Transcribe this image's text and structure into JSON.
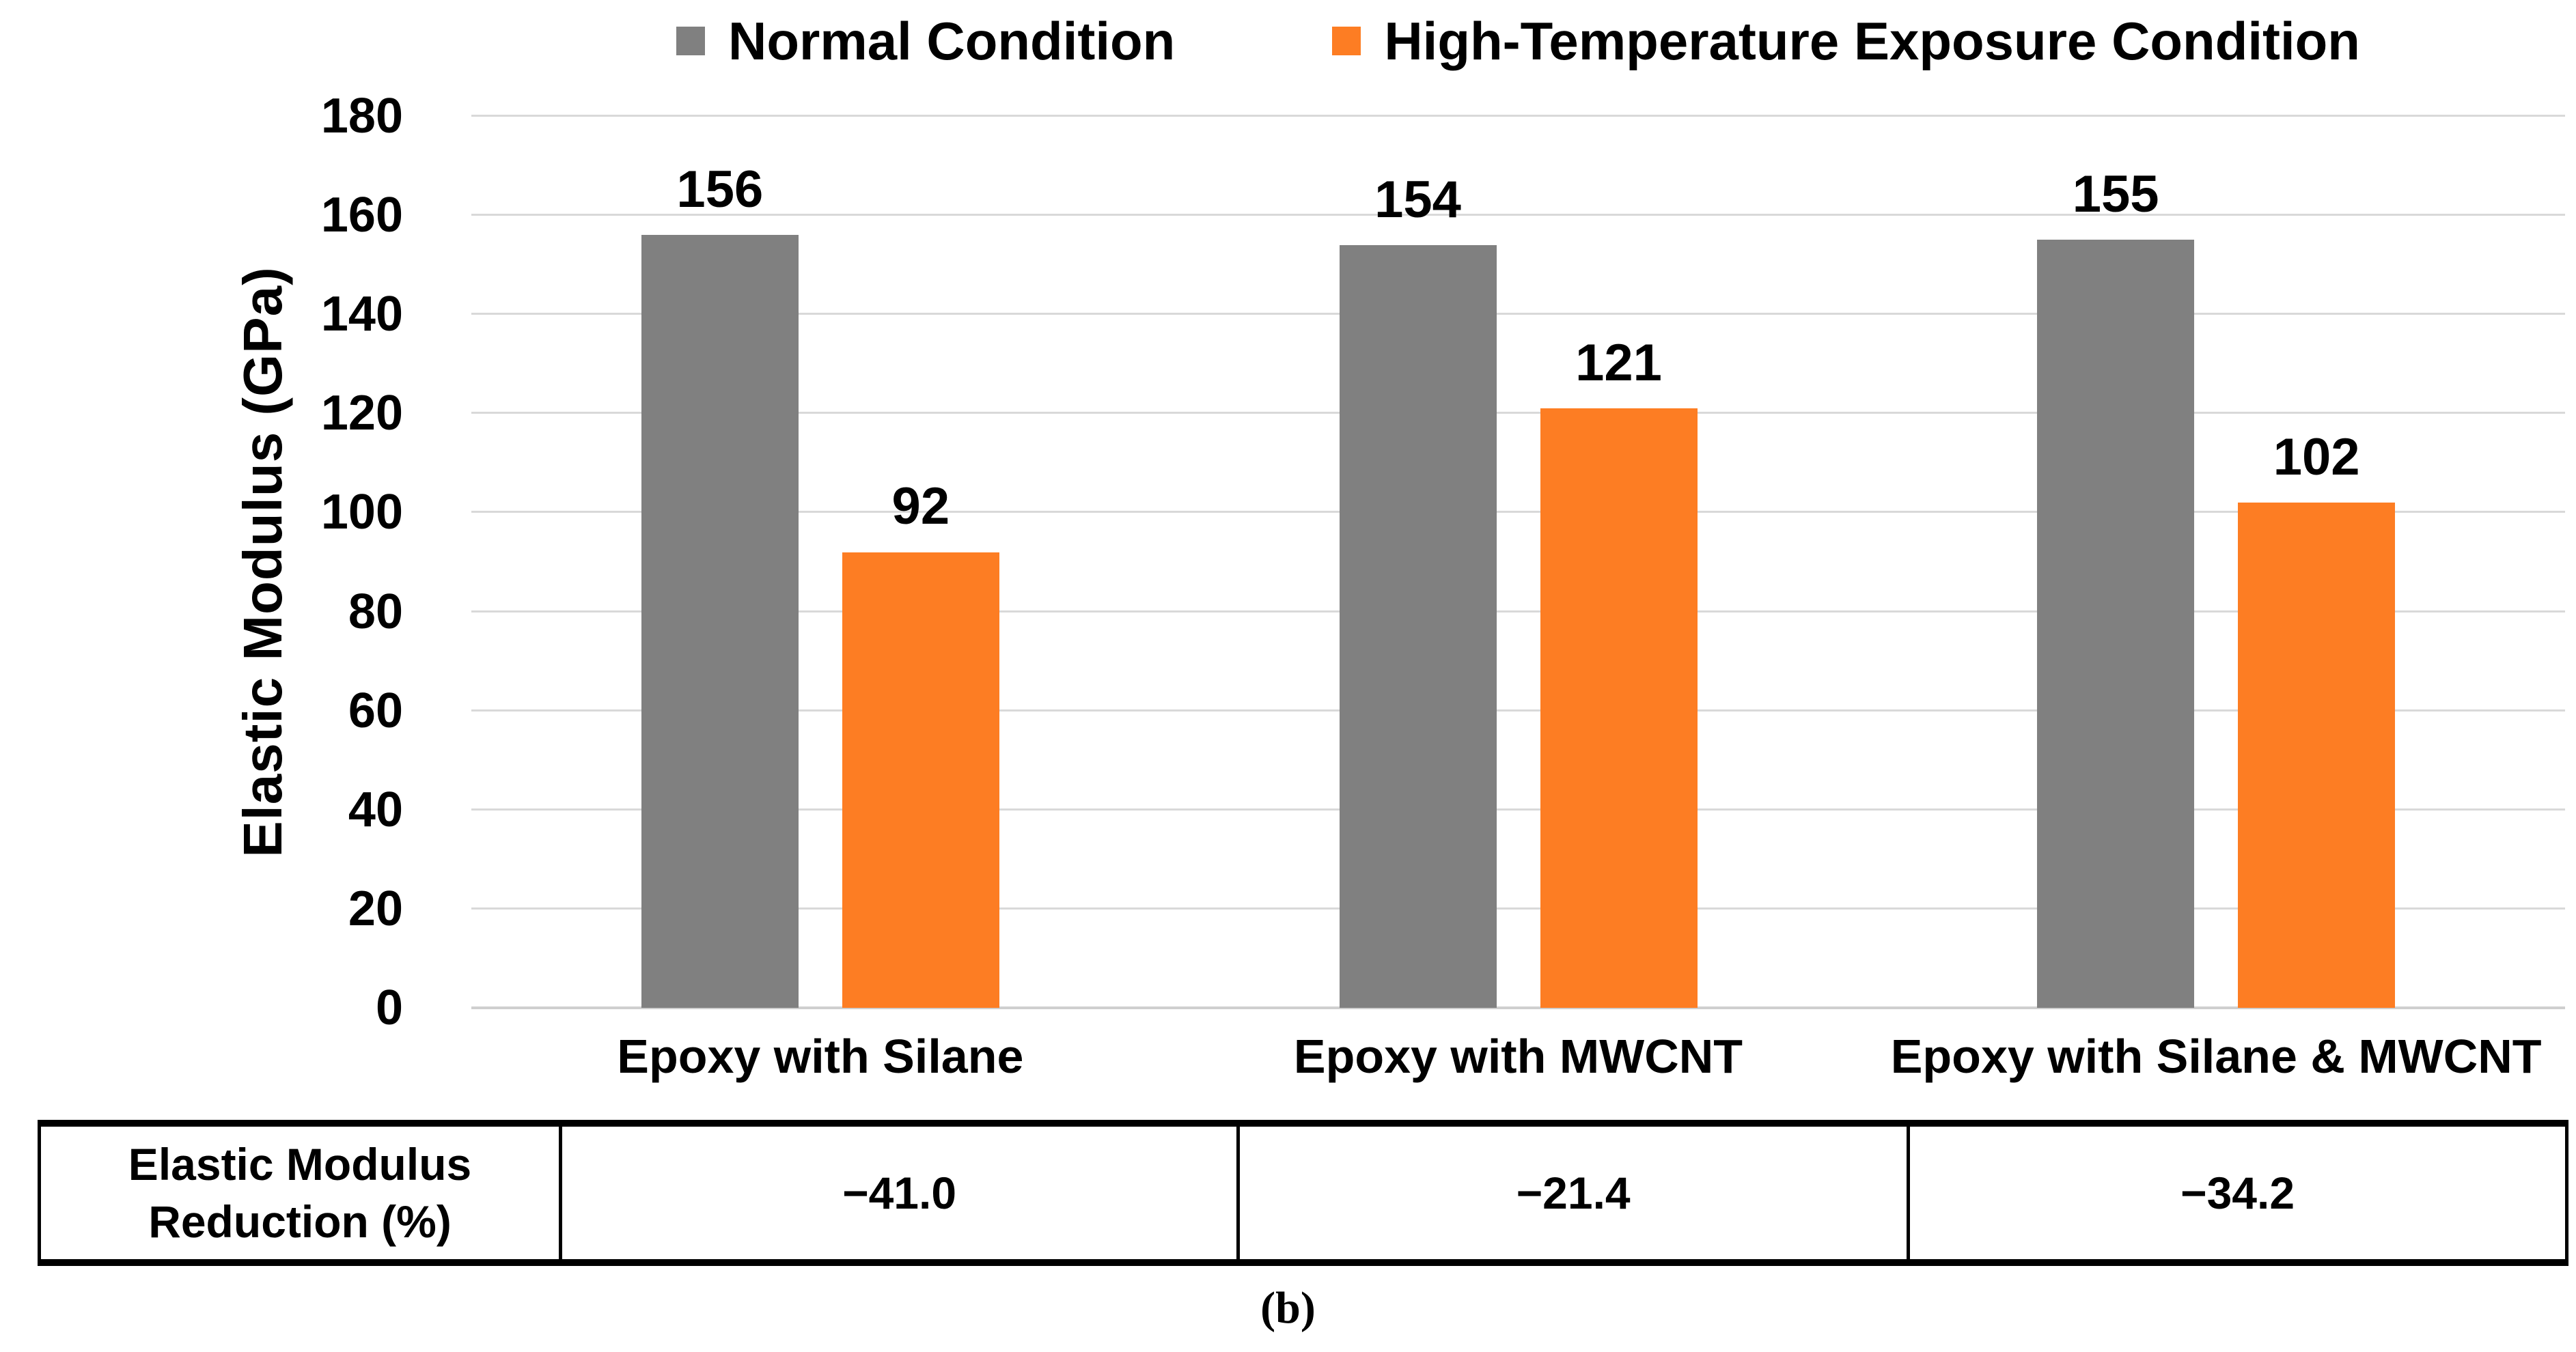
{
  "chart_data": {
    "type": "bar",
    "title": "",
    "xlabel": "",
    "ylabel": "Elastic Modulus (GPa)",
    "ylim": [
      0,
      180
    ],
    "yticks": [
      0,
      20,
      40,
      60,
      80,
      100,
      120,
      140,
      160,
      180
    ],
    "grid": true,
    "legend_position": "top",
    "categories": [
      "Epoxy with Silane",
      "Epoxy with MWCNT",
      "Epoxy with Silane & MWCNT"
    ],
    "series": [
      {
        "name": "Normal Condition",
        "color": "#808080",
        "values": [
          156,
          154,
          155
        ]
      },
      {
        "name": "High-Temperature Exposure Condition",
        "color": "#FD7D23",
        "values": [
          92,
          121,
          102
        ]
      }
    ]
  },
  "colors": {
    "grid": "#D9D9D9",
    "axis_line": "#CFCFCF",
    "bar_gray": "#808080",
    "bar_orange": "#FD7D23",
    "text": "#000000"
  },
  "table": {
    "header_lines": [
      "Elastic Modulus",
      "Reduction (%)"
    ],
    "values": [
      "−41.0",
      "−21.4",
      "−34.2"
    ]
  },
  "caption": "(b)"
}
